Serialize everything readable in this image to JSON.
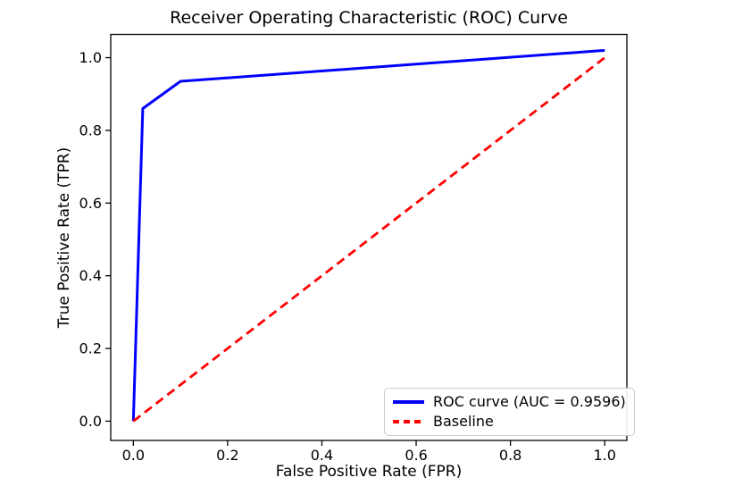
{
  "chart_data": {
    "type": "line",
    "title": "Receiver Operating Characteristic (ROC) Curve",
    "xlabel": "False Positive Rate (FPR)",
    "ylabel": "True Positive Rate (TPR)",
    "xlim": [
      -0.048,
      1.047
    ],
    "ylim": [
      -0.053,
      1.064
    ],
    "xticks": [
      0.0,
      0.2,
      0.4,
      0.6,
      0.8,
      1.0
    ],
    "yticks": [
      0.0,
      0.2,
      0.4,
      0.6,
      0.8,
      1.0
    ],
    "grid": false,
    "legend_position": "lower right",
    "auc": 0.9596,
    "series": [
      {
        "id": "roc-curve",
        "name": "ROC curve (AUC = 0.9596)",
        "color": "#0000ff",
        "style": "solid",
        "linewidth": 3,
        "points": [
          [
            0.0,
            0.0
          ],
          [
            0.02,
            0.86
          ],
          [
            0.1,
            0.935
          ],
          [
            1.0,
            1.02
          ]
        ]
      },
      {
        "id": "baseline",
        "name": "Baseline",
        "color": "#ff0000",
        "style": "dashed",
        "linewidth": 2.8,
        "points": [
          [
            0.0,
            0.0
          ],
          [
            1.0,
            1.0
          ]
        ]
      }
    ]
  },
  "colors": {
    "spine": "#000000",
    "tick_label": "#000000",
    "legend_border": "#cccccc"
  }
}
